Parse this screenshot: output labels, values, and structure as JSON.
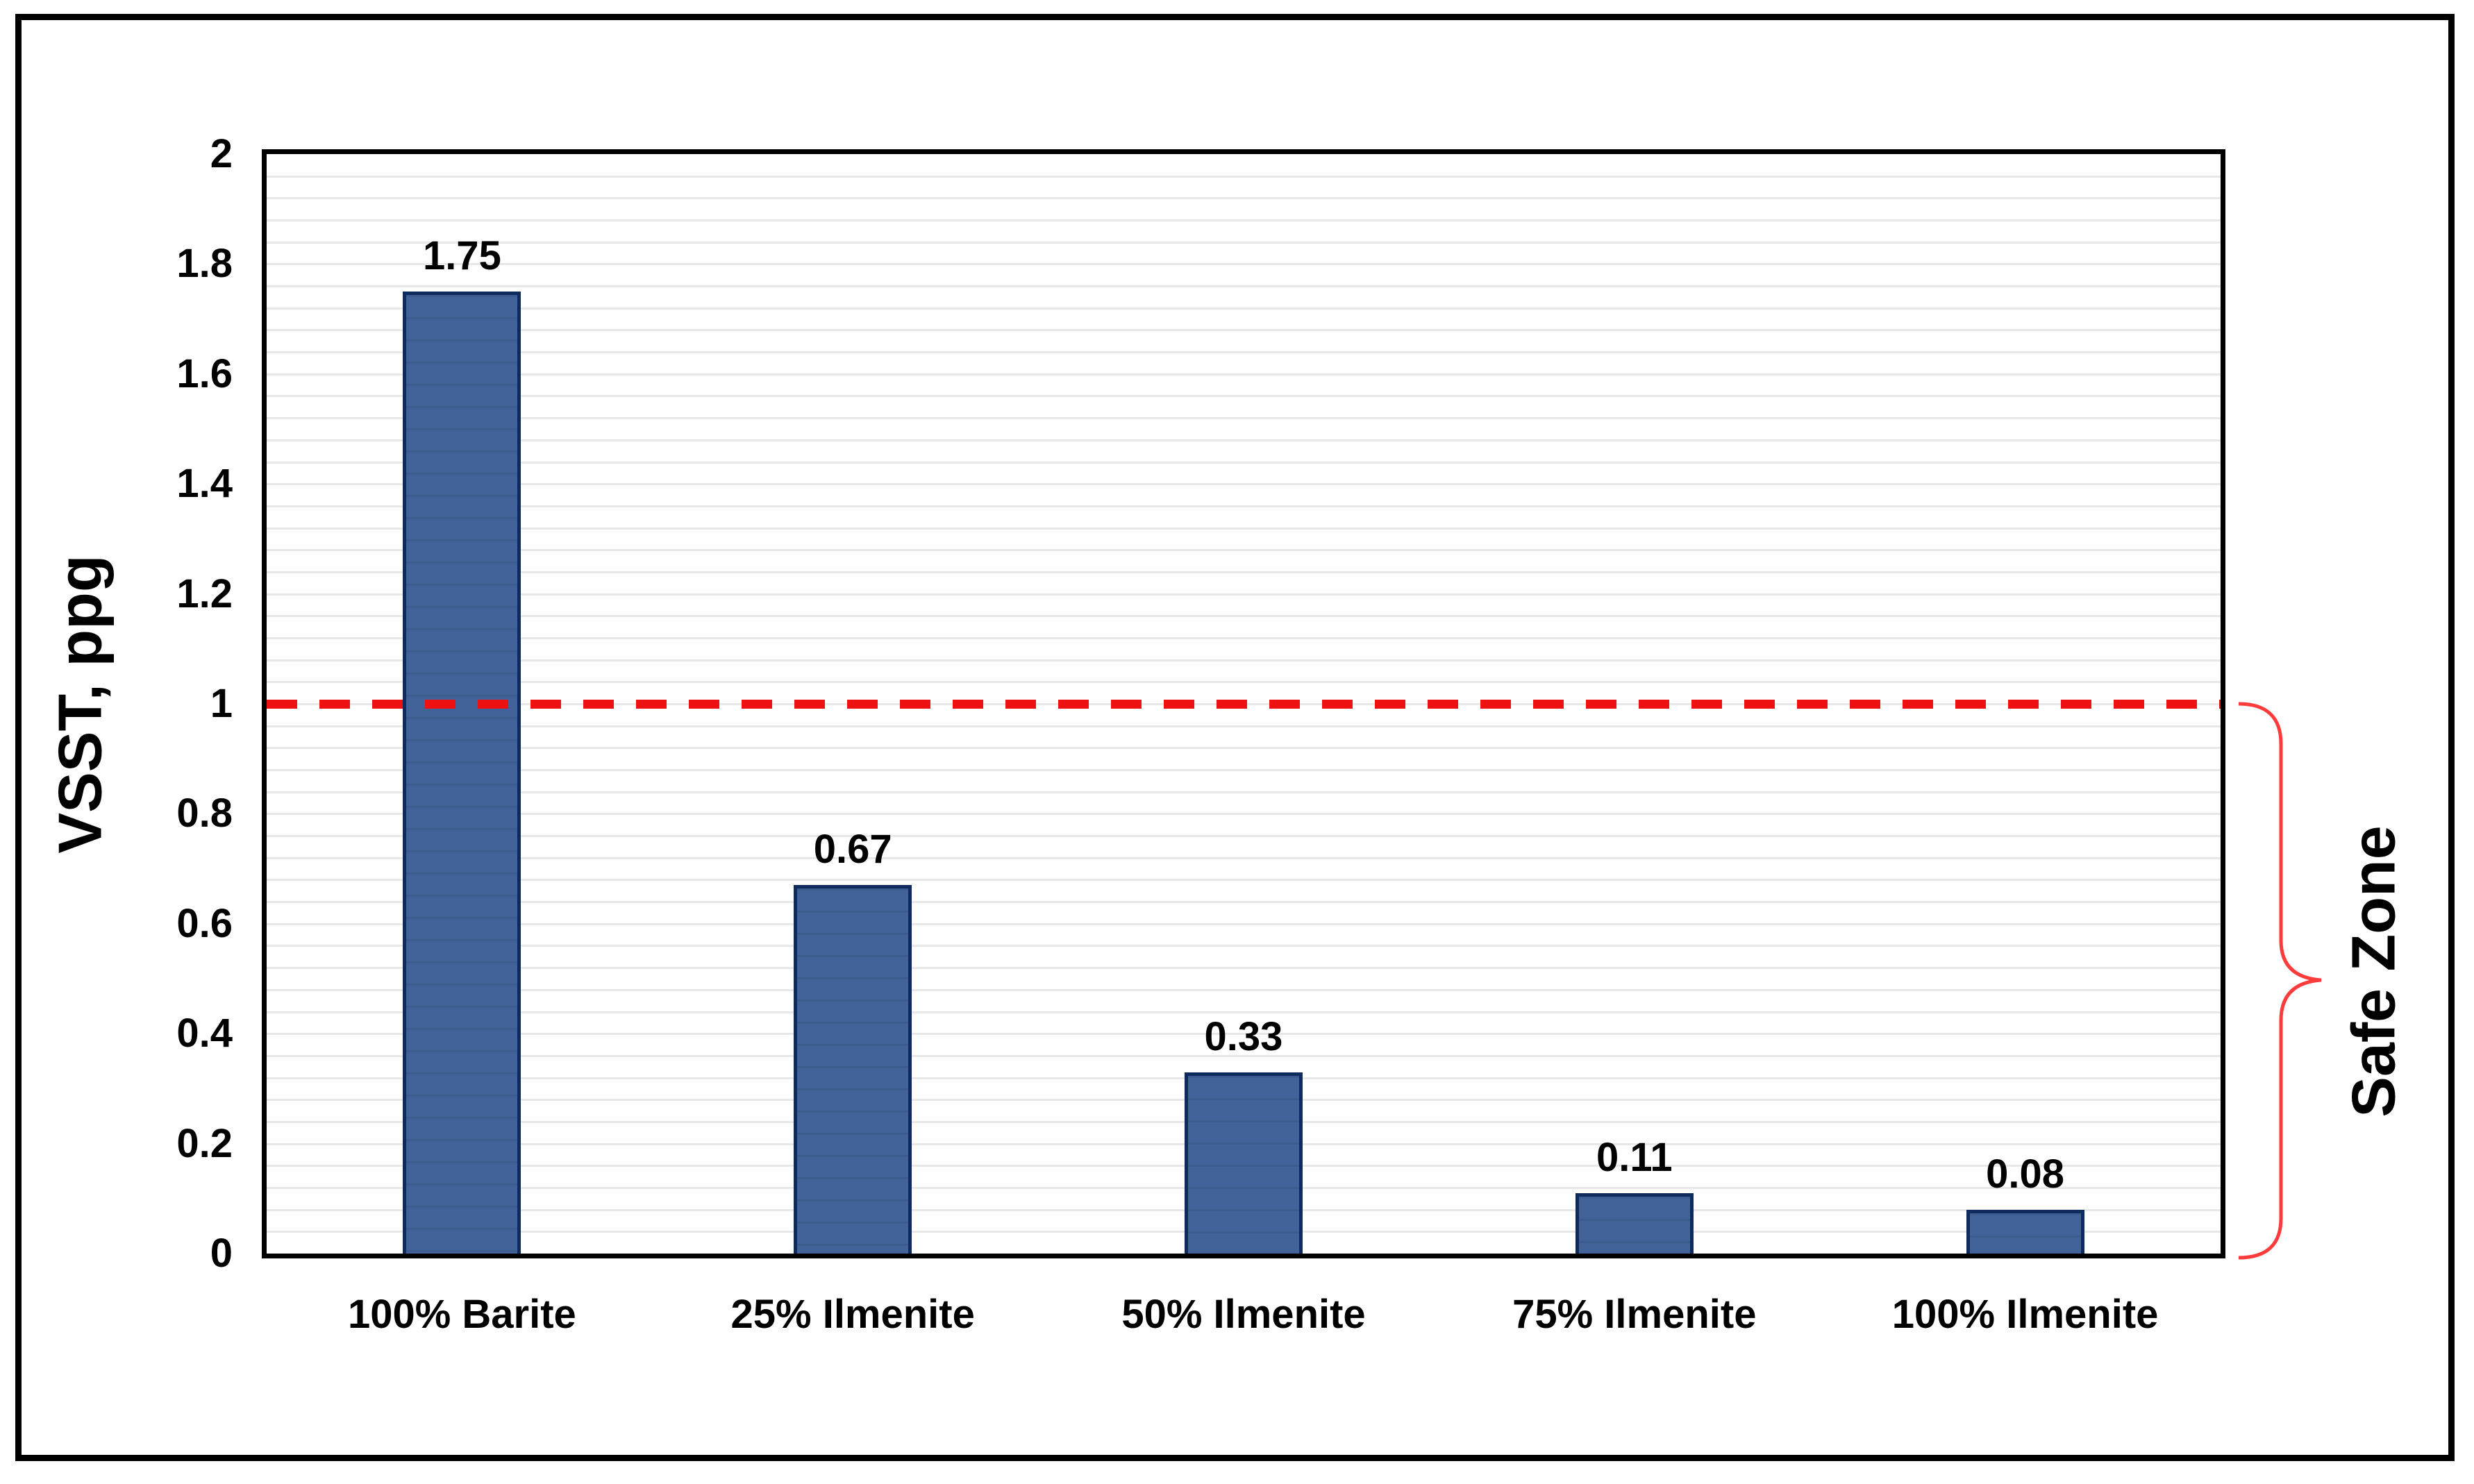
{
  "chart_data": {
    "type": "bar",
    "title": "",
    "xlabel": "",
    "ylabel": "VSST, ppg",
    "categories": [
      "100% Barite",
      "25% Ilmenite",
      "50% Ilmenite",
      "75% Ilmenite",
      "100% Ilmenite"
    ],
    "values": [
      1.75,
      0.67,
      0.33,
      0.11,
      0.08
    ],
    "data_labels": [
      "1.75",
      "0.67",
      "0.33",
      "0.11",
      "0.08"
    ],
    "ylim": [
      0,
      2
    ],
    "y_major_unit": 0.2,
    "y_minor_unit": 0.04,
    "y_tick_labels": [
      "0",
      "0.2",
      "0.4",
      "0.6",
      "0.8",
      "1",
      "1.2",
      "1.4",
      "1.6",
      "1.8",
      "2"
    ],
    "grid": "minor-horizontal-only",
    "legend": "none",
    "reference_line": {
      "value": 1,
      "style": "dashed",
      "color": "#ee1111"
    },
    "annotation": {
      "label": "Safe Zone",
      "range": [
        0,
        1
      ],
      "side": "right",
      "brace_color": "#ff3b3b"
    },
    "colors": {
      "bar_fill": "#41639a",
      "bar_border": "#0f2a5c",
      "gridline": "#e8e8e8",
      "plot_border": "#000000",
      "outer_frame": "#000000",
      "background": "#ffffff",
      "text": "#000000"
    }
  }
}
